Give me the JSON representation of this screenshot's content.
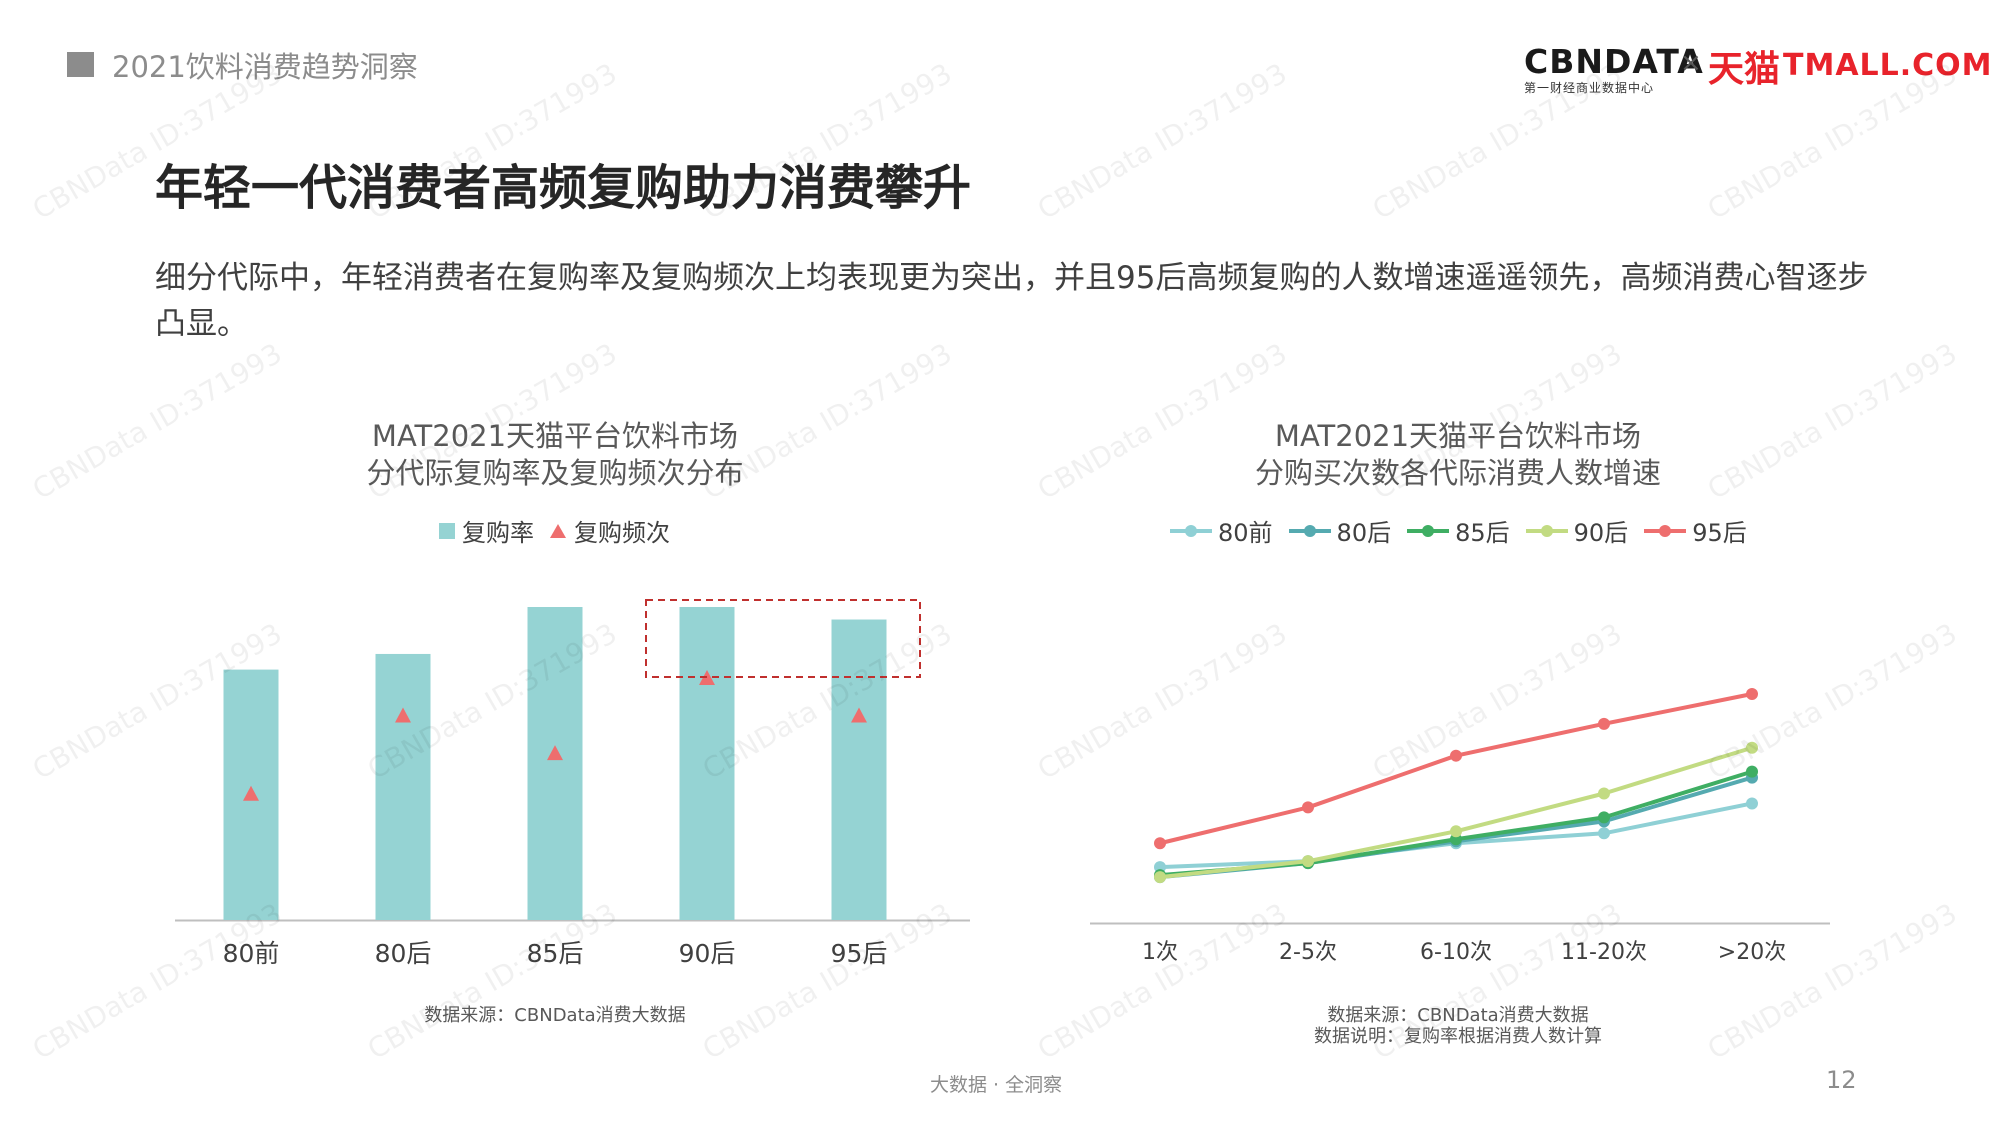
{
  "header": {
    "section_label": "2021饮料消费趋势洞察",
    "logo": {
      "cbn_text": "CBNDATA",
      "cbn_sub": "第一财经商业数据中心",
      "separator": "×",
      "tmall_cn": "天猫",
      "tmall_en": "TMALL.COM"
    }
  },
  "title": "年轻一代消费者高频复购助力消费攀升",
  "description": "细分代际中，年轻消费者在复购率及复购频次上均表现更为突出，并且95后高频复购的人数增速遥遥领先，高频消费心智逐步凸显。",
  "colors": {
    "bar": "#95d3d3",
    "triangle": "#ee6e6e",
    "highlight_box": "#c0302e",
    "axis": "#bfbfbf",
    "s80qian": "#8fd0d5",
    "s80hou": "#55aab0",
    "s85hou": "#3fae63",
    "s90hou": "#c2db82",
    "s95hou": "#ee6e6e"
  },
  "chart_data": [
    {
      "type": "bar",
      "title_line1": "MAT2021天猫平台饮料市场",
      "title_line2": "分代际复购率及复购频次分布",
      "categories": [
        "80前",
        "80后",
        "85后",
        "90后",
        "95后"
      ],
      "series": [
        {
          "name": "复购率",
          "kind": "bar",
          "values": [
            0.8,
            0.85,
            1.0,
            1.0,
            0.96
          ]
        },
        {
          "name": "复购频次",
          "kind": "triangle",
          "values": [
            0.4,
            0.65,
            0.53,
            0.77,
            0.65
          ]
        }
      ],
      "highlight_categories": [
        "90后",
        "95后"
      ],
      "source": "数据来源：CBNData消费大数据"
    },
    {
      "type": "line",
      "title_line1": "MAT2021天猫平台饮料市场",
      "title_line2": "分购买次数各代际消费人数增速",
      "categories": [
        "1次",
        "2-5次",
        "6-10次",
        "11-20次",
        ">20次"
      ],
      "series": [
        {
          "name": "80前",
          "values": [
            0.13,
            0.16,
            0.25,
            0.3,
            0.45
          ]
        },
        {
          "name": "80后",
          "values": [
            0.08,
            0.15,
            0.26,
            0.36,
            0.58
          ]
        },
        {
          "name": "85后",
          "values": [
            0.09,
            0.15,
            0.27,
            0.38,
            0.61
          ]
        },
        {
          "name": "90后",
          "values": [
            0.08,
            0.16,
            0.31,
            0.5,
            0.73
          ]
        },
        {
          "name": "95后",
          "values": [
            0.25,
            0.43,
            0.69,
            0.85,
            1.0
          ]
        }
      ],
      "source_line1": "数据来源：CBNData消费大数据",
      "source_line2": "数据说明：复购率根据消费人数计算"
    }
  ],
  "watermark": "CBNData ID:371993",
  "footer": {
    "center": "大数据 · 全洞察",
    "page_number": "12"
  }
}
